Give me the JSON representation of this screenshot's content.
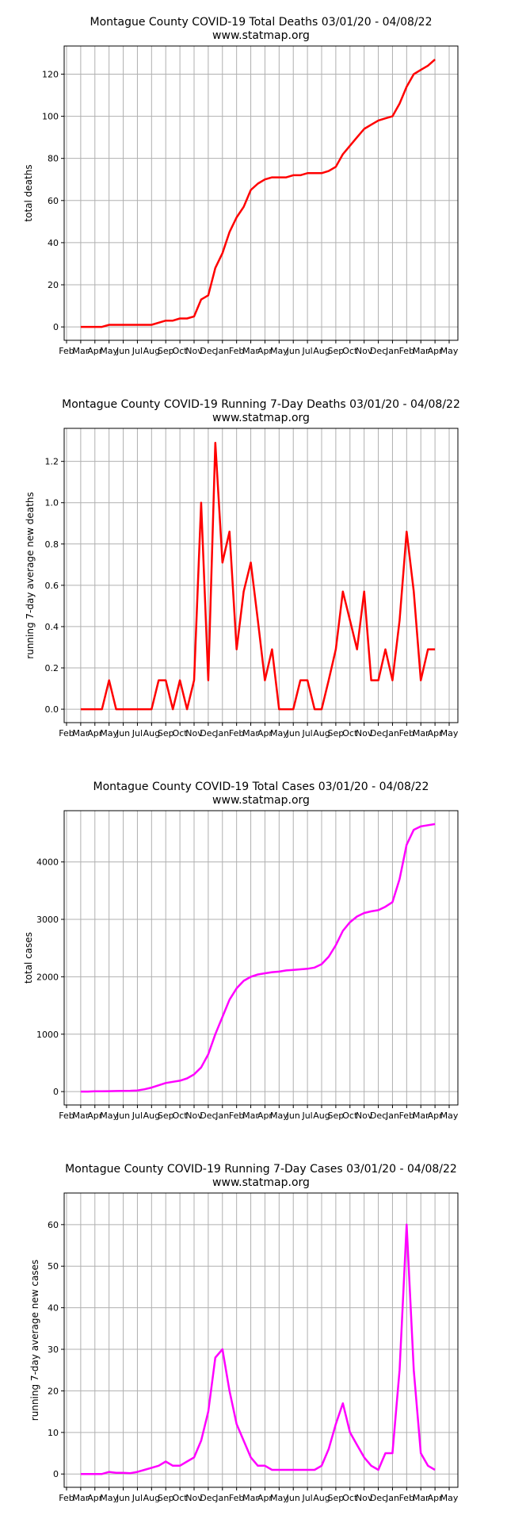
{
  "chart_data": [
    {
      "type": "line",
      "title": "Montague County COVID-19 Total Deaths 03/01/20 - 04/08/22",
      "subtitle": "www.statmap.org",
      "ylabel": "total deaths",
      "color": "#ff0000",
      "grid": true,
      "categories": [
        "Feb",
        null,
        "Mar",
        null,
        "Apr",
        null,
        "May",
        null,
        "Jun",
        null,
        "Jul",
        null,
        "Aug",
        null,
        "Sep",
        null,
        "Oct",
        null,
        "Nov",
        null,
        "Dec",
        null,
        "Jan",
        null,
        "Feb",
        null,
        "Mar",
        null,
        "Apr",
        null,
        "May",
        null,
        "Jun",
        null,
        "Jul",
        null,
        "Aug",
        null,
        "Sep",
        null,
        "Oct",
        null,
        "Nov",
        null,
        "Dec",
        null,
        "Jan",
        null,
        "Feb",
        null,
        "Mar",
        null,
        "Apr",
        null,
        "May"
      ],
      "values": [
        null,
        null,
        0,
        0,
        0,
        0,
        1,
        1,
        1,
        1,
        1,
        1,
        1,
        2,
        3,
        3,
        4,
        4,
        5,
        13,
        15,
        28,
        35,
        45,
        52,
        57,
        65,
        68,
        70,
        71,
        71,
        71,
        72,
        72,
        73,
        73,
        73,
        74,
        76,
        82,
        86,
        90,
        94,
        96,
        98,
        99,
        100,
        106,
        114,
        120,
        122,
        124,
        127,
        null,
        null
      ],
      "ylim": [
        -6.35,
        133.35
      ],
      "yticks": [
        0,
        20,
        40,
        60,
        80,
        100,
        120
      ]
    },
    {
      "type": "line",
      "title": "Montague County COVID-19 Running 7-Day Deaths 03/01/20 - 04/08/22",
      "subtitle": "www.statmap.org",
      "ylabel": "running 7-day average new deaths",
      "color": "#ff0000",
      "grid": true,
      "categories": [
        "Feb",
        null,
        "Mar",
        null,
        "Apr",
        null,
        "May",
        null,
        "Jun",
        null,
        "Jul",
        null,
        "Aug",
        null,
        "Sep",
        null,
        "Oct",
        null,
        "Nov",
        null,
        "Dec",
        null,
        "Jan",
        null,
        "Feb",
        null,
        "Mar",
        null,
        "Apr",
        null,
        "May",
        null,
        "Jun",
        null,
        "Jul",
        null,
        "Aug",
        null,
        "Sep",
        null,
        "Oct",
        null,
        "Nov",
        null,
        "Dec",
        null,
        "Jan",
        null,
        "Feb",
        null,
        "Mar",
        null,
        "Apr",
        null,
        "May"
      ],
      "values": [
        null,
        null,
        0,
        0,
        0,
        0,
        0.14,
        0,
        0,
        0,
        0,
        0,
        0,
        0.14,
        0.14,
        0,
        0.14,
        0,
        0.14,
        1.0,
        0.14,
        1.29,
        0.71,
        0.86,
        0.29,
        0.57,
        0.71,
        0.43,
        0.14,
        0.29,
        0,
        0,
        0,
        0.14,
        0.14,
        0,
        0,
        0.14,
        0.29,
        0.57,
        0.43,
        0.29,
        0.57,
        0.14,
        0.14,
        0.29,
        0.14,
        0.43,
        0.86,
        0.57,
        0.14,
        0.29,
        0.29,
        null,
        null
      ],
      "ylim": [
        -0.065,
        1.36
      ],
      "yticks": [
        {
          "value": 0,
          "label": "0.0"
        },
        0.2,
        0.4,
        0.6,
        0.8,
        {
          "value": 1,
          "label": "1.0"
        },
        1.2
      ]
    },
    {
      "type": "line",
      "title": "Montague County COVID-19 Total Cases 03/01/20 - 04/08/22",
      "subtitle": "www.statmap.org",
      "ylabel": "total cases",
      "color": "#ff00ff",
      "grid": true,
      "categories": [
        "Feb",
        null,
        "Mar",
        null,
        "Apr",
        null,
        "May",
        null,
        "Jun",
        null,
        "Jul",
        null,
        "Aug",
        null,
        "Sep",
        null,
        "Oct",
        null,
        "Nov",
        null,
        "Dec",
        null,
        "Jan",
        null,
        "Feb",
        null,
        "Mar",
        null,
        "Apr",
        null,
        "May",
        null,
        "Jun",
        null,
        "Jul",
        null,
        "Aug",
        null,
        "Sep",
        null,
        "Oct",
        null,
        "Nov",
        null,
        "Dec",
        null,
        "Jan",
        null,
        "Feb",
        null,
        "Mar",
        null,
        "Apr",
        null,
        "May"
      ],
      "values": [
        null,
        null,
        0,
        0,
        5,
        5,
        8,
        10,
        12,
        15,
        20,
        40,
        70,
        110,
        150,
        170,
        190,
        230,
        300,
        420,
        650,
        1000,
        1300,
        1600,
        1800,
        1930,
        2000,
        2040,
        2060,
        2080,
        2090,
        2110,
        2120,
        2130,
        2140,
        2160,
        2220,
        2350,
        2550,
        2800,
        2950,
        3050,
        3110,
        3140,
        3160,
        3220,
        3300,
        3700,
        4300,
        4560,
        4620,
        4640,
        4660,
        null,
        null
      ],
      "ylim": [
        -233,
        4893
      ],
      "yticks": [
        0,
        1000,
        2000,
        3000,
        4000
      ]
    },
    {
      "type": "line",
      "title": "Montague County COVID-19 Running 7-Day Cases 03/01/20 - 04/08/22",
      "subtitle": "www.statmap.org",
      "ylabel": "running 7-day average new cases",
      "color": "#ff00ff",
      "grid": true,
      "categories": [
        "Feb",
        null,
        "Mar",
        null,
        "Apr",
        null,
        "May",
        null,
        "Jun",
        null,
        "Jul",
        null,
        "Aug",
        null,
        "Sep",
        null,
        "Oct",
        null,
        "Nov",
        null,
        "Dec",
        null,
        "Jan",
        null,
        "Feb",
        null,
        "Mar",
        null,
        "Apr",
        null,
        "May",
        null,
        "Jun",
        null,
        "Jul",
        null,
        "Aug",
        null,
        "Sep",
        null,
        "Oct",
        null,
        "Nov",
        null,
        "Dec",
        null,
        "Jan",
        null,
        "Feb",
        null,
        "Mar",
        null,
        "Apr",
        null,
        "May"
      ],
      "values": [
        null,
        null,
        0,
        0,
        0,
        0,
        0.5,
        0.3,
        0.3,
        0.2,
        0.5,
        1,
        1.5,
        2,
        3,
        2,
        2,
        3,
        4,
        8,
        15,
        28,
        30,
        20,
        12,
        8,
        4,
        2,
        2,
        1,
        1,
        1,
        1,
        1,
        1,
        1,
        2,
        6,
        12,
        17,
        10,
        7,
        4,
        2,
        1,
        5,
        5,
        25,
        60,
        25,
        5,
        2,
        1,
        null,
        null
      ],
      "ylim": [
        -3.2,
        67.6
      ],
      "yticks": [
        0,
        10,
        20,
        30,
        40,
        50,
        60
      ]
    }
  ]
}
